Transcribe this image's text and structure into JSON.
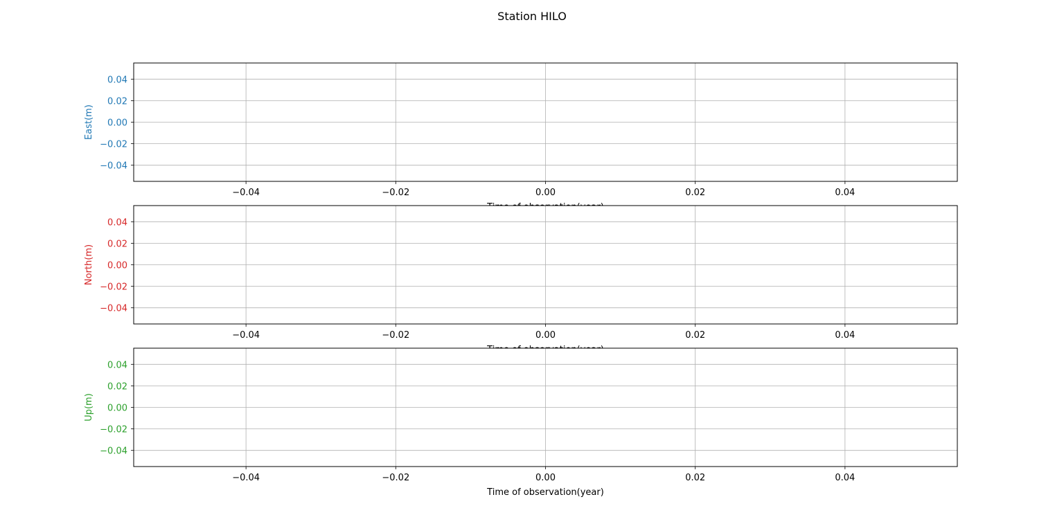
{
  "figure": {
    "title": "Station HILO"
  },
  "chart_data": [
    {
      "type": "line",
      "ylabel": "East(m)",
      "xlabel": "Time of observation(year)",
      "color": "#1f77b4",
      "xlim": [
        -0.055,
        0.055
      ],
      "ylim": [
        -0.055,
        0.055
      ],
      "xticks": [
        -0.04,
        -0.02,
        0.0,
        0.02,
        0.04
      ],
      "yticks": [
        0.04,
        0.02,
        0.0,
        -0.02,
        -0.04
      ],
      "xtick_labels": [
        "−0.04",
        "−0.02",
        "0.00",
        "0.02",
        "0.04"
      ],
      "ytick_labels": [
        "0.04",
        "0.02",
        "0.00",
        "−0.02",
        "−0.04"
      ],
      "grid": true,
      "series": []
    },
    {
      "type": "line",
      "ylabel": "North(m)",
      "xlabel": "Time of observation(year)",
      "color": "#d62728",
      "xlim": [
        -0.055,
        0.055
      ],
      "ylim": [
        -0.055,
        0.055
      ],
      "xticks": [
        -0.04,
        -0.02,
        0.0,
        0.02,
        0.04
      ],
      "yticks": [
        0.04,
        0.02,
        0.0,
        -0.02,
        -0.04
      ],
      "xtick_labels": [
        "−0.04",
        "−0.02",
        "0.00",
        "0.02",
        "0.04"
      ],
      "ytick_labels": [
        "0.04",
        "0.02",
        "0.00",
        "−0.02",
        "−0.04"
      ],
      "grid": true,
      "series": []
    },
    {
      "type": "line",
      "ylabel": "Up(m)",
      "xlabel": "Time of observation(year)",
      "color": "#2ca02c",
      "xlim": [
        -0.055,
        0.055
      ],
      "ylim": [
        -0.055,
        0.055
      ],
      "xticks": [
        -0.04,
        -0.02,
        0.0,
        0.02,
        0.04
      ],
      "yticks": [
        0.04,
        0.02,
        0.0,
        -0.02,
        -0.04
      ],
      "xtick_labels": [
        "−0.04",
        "−0.02",
        "0.00",
        "0.02",
        "0.04"
      ],
      "ytick_labels": [
        "0.04",
        "0.02",
        "0.00",
        "−0.02",
        "−0.04"
      ],
      "grid": true,
      "series": []
    }
  ]
}
